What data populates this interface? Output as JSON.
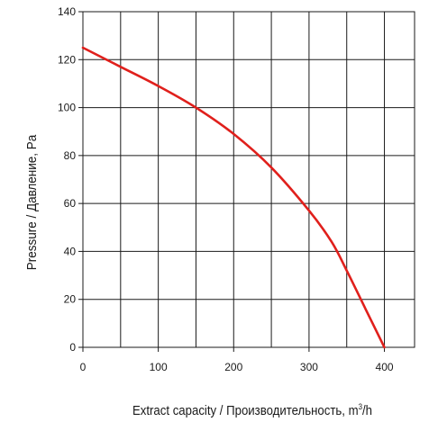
{
  "chart_data": {
    "type": "line",
    "title": "",
    "xlabel_main": "Extract capacity / Производительность, m",
    "xlabel_sup": "3",
    "xlabel_tail": "/h",
    "ylabel": "Pressure / Давление, Pa",
    "xlim": [
      0,
      440
    ],
    "ylim": [
      0,
      140
    ],
    "x_ticks": [
      0,
      100,
      200,
      300,
      400
    ],
    "y_ticks": [
      0,
      20,
      40,
      60,
      80,
      100,
      120,
      140
    ],
    "x_grid_step": 50,
    "y_grid_step": 20,
    "grid": true,
    "legend": "none",
    "series": [
      {
        "color": "#e0201c",
        "x": [
          0,
          50,
          100,
          150,
          200,
          250,
          300,
          330,
          350,
          375,
          400
        ],
        "y": [
          125,
          117,
          109,
          100,
          89,
          75,
          57,
          44,
          32,
          16,
          0
        ]
      }
    ]
  }
}
